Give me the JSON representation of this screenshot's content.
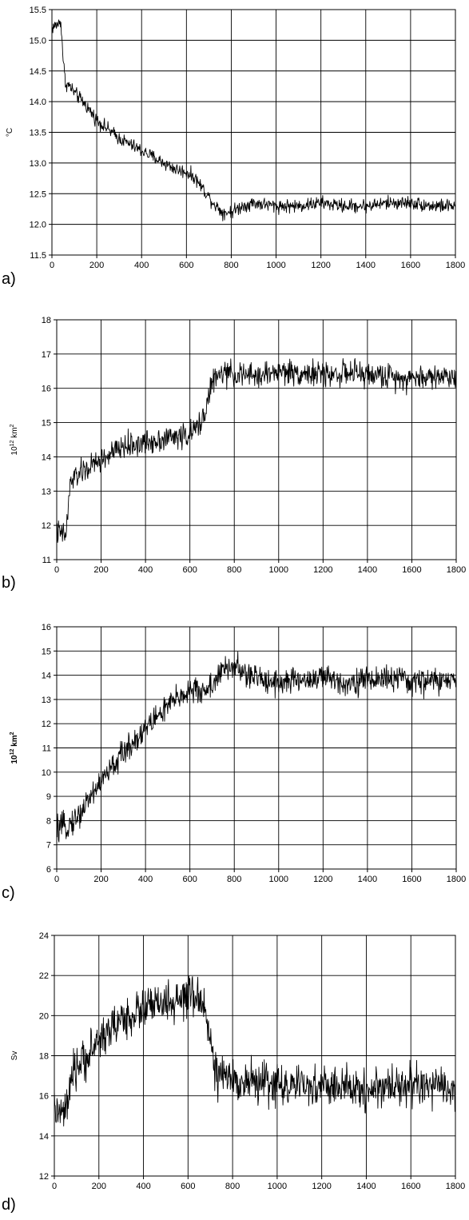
{
  "chart_data": [
    {
      "type": "line",
      "panel_label": "a)",
      "ylabel": "°C",
      "ylabel_sup": "",
      "ylabel_bold": false,
      "xlim": [
        0,
        1800
      ],
      "ylim": [
        11.5,
        15.5
      ],
      "xticks": [
        0,
        200,
        400,
        600,
        800,
        1000,
        1200,
        1400,
        1600,
        1800
      ],
      "yticks": [
        11.5,
        12.0,
        12.5,
        13.0,
        13.5,
        14.0,
        14.5,
        15.0,
        15.5
      ],
      "ytick_labels": [
        "11.5",
        "12.0",
        "12.5",
        "13.0",
        "13.5",
        "14.0",
        "14.5",
        "15.0",
        "15.5"
      ],
      "grid": true,
      "series": [
        {
          "x": [
            0,
            20,
            40,
            50,
            60,
            80,
            100,
            150,
            200,
            250,
            300,
            350,
            400,
            450,
            500,
            550,
            600,
            640,
            680,
            720,
            760,
            800,
            850,
            900,
            1000,
            1100,
            1200,
            1300,
            1400,
            1500,
            1600,
            1700,
            1800
          ],
          "values": [
            15.2,
            15.25,
            15.3,
            14.7,
            14.3,
            14.25,
            14.15,
            13.95,
            13.7,
            13.55,
            13.4,
            13.3,
            13.2,
            13.1,
            13.0,
            12.9,
            12.85,
            12.75,
            12.55,
            12.35,
            12.2,
            12.2,
            12.3,
            12.35,
            12.3,
            12.3,
            12.35,
            12.3,
            12.3,
            12.35,
            12.35,
            12.3,
            12.3
          ],
          "noise": 0.09
        }
      ]
    },
    {
      "type": "line",
      "panel_label": "b)",
      "ylabel": "10",
      "ylabel_sup": "12",
      "ylabel_unit": " km",
      "ylabel_unit_sup": "2",
      "ylabel_bold": false,
      "xlim": [
        0,
        1800
      ],
      "ylim": [
        11,
        18
      ],
      "xticks": [
        0,
        200,
        400,
        600,
        800,
        1000,
        1200,
        1400,
        1600,
        1800
      ],
      "yticks": [
        11,
        12,
        13,
        14,
        15,
        16,
        17,
        18
      ],
      "ytick_labels": [
        "11",
        "12",
        "13",
        "14",
        "15",
        "16",
        "17",
        "18"
      ],
      "grid": true,
      "series": [
        {
          "x": [
            0,
            40,
            50,
            60,
            80,
            100,
            150,
            200,
            250,
            300,
            350,
            400,
            450,
            500,
            550,
            600,
            640,
            660,
            680,
            700,
            750,
            800,
            900,
            1000,
            1100,
            1200,
            1300,
            1400,
            1500,
            1600,
            1700,
            1800
          ],
          "values": [
            11.8,
            11.7,
            12.3,
            13.2,
            13.4,
            13.5,
            13.7,
            13.9,
            14.1,
            14.3,
            14.35,
            14.4,
            14.5,
            14.55,
            14.6,
            14.65,
            14.9,
            15.2,
            15.6,
            16.2,
            16.45,
            16.4,
            16.35,
            16.5,
            16.45,
            16.4,
            16.45,
            16.4,
            16.35,
            16.3,
            16.35,
            16.35
          ],
          "noise": 0.3
        }
      ]
    },
    {
      "type": "line",
      "panel_label": "c)",
      "ylabel": "10",
      "ylabel_sup": "12",
      "ylabel_unit": " km",
      "ylabel_unit_sup": "2",
      "ylabel_bold": true,
      "xlim": [
        0,
        1800
      ],
      "ylim": [
        6,
        16
      ],
      "xticks": [
        0,
        200,
        400,
        600,
        800,
        1000,
        1200,
        1400,
        1600,
        1800
      ],
      "yticks": [
        6,
        7,
        8,
        9,
        10,
        11,
        12,
        13,
        14,
        15,
        16
      ],
      "ytick_labels": [
        "6",
        "7",
        "8",
        "9",
        "10",
        "11",
        "12",
        "13",
        "14",
        "15",
        "16"
      ],
      "grid": true,
      "series": [
        {
          "x": [
            0,
            50,
            100,
            150,
            200,
            250,
            300,
            350,
            400,
            450,
            500,
            550,
            600,
            650,
            700,
            750,
            800,
            850,
            900,
            1000,
            1100,
            1200,
            1300,
            1400,
            1500,
            1600,
            1700,
            1800
          ],
          "values": [
            7.6,
            7.8,
            8.2,
            9.0,
            9.6,
            10.2,
            10.8,
            11.3,
            11.8,
            12.3,
            12.7,
            13.1,
            13.4,
            13.3,
            13.6,
            14.2,
            14.4,
            14.0,
            13.9,
            13.7,
            13.8,
            13.9,
            13.7,
            13.8,
            13.9,
            13.7,
            13.8,
            13.7
          ],
          "noise": 0.45
        }
      ]
    },
    {
      "type": "line",
      "panel_label": "d)",
      "ylabel": "Sv",
      "ylabel_sup": "",
      "ylabel_bold": false,
      "xlim": [
        0,
        1800
      ],
      "ylim": [
        12,
        24
      ],
      "xticks": [
        0,
        200,
        400,
        600,
        800,
        1000,
        1200,
        1400,
        1600,
        1800
      ],
      "yticks": [
        12,
        14,
        16,
        18,
        20,
        22,
        24
      ],
      "ytick_labels": [
        "12",
        "14",
        "16",
        "18",
        "20",
        "22",
        "24"
      ],
      "grid": true,
      "series": [
        {
          "x": [
            0,
            40,
            60,
            80,
            100,
            150,
            200,
            250,
            300,
            350,
            400,
            450,
            500,
            550,
            600,
            650,
            680,
            700,
            720,
            750,
            800,
            900,
            1000,
            1100,
            1200,
            1300,
            1400,
            1500,
            1600,
            1700,
            1800
          ],
          "values": [
            15.3,
            15.0,
            15.6,
            16.8,
            17.4,
            18.0,
            18.8,
            19.3,
            19.8,
            20.0,
            20.4,
            20.5,
            20.6,
            20.6,
            20.9,
            20.8,
            20.4,
            18.8,
            17.2,
            16.9,
            16.8,
            16.7,
            16.6,
            16.4,
            16.5,
            16.4,
            16.3,
            16.5,
            16.6,
            16.4,
            16.3
          ],
          "noise": 0.85
        }
      ]
    }
  ]
}
